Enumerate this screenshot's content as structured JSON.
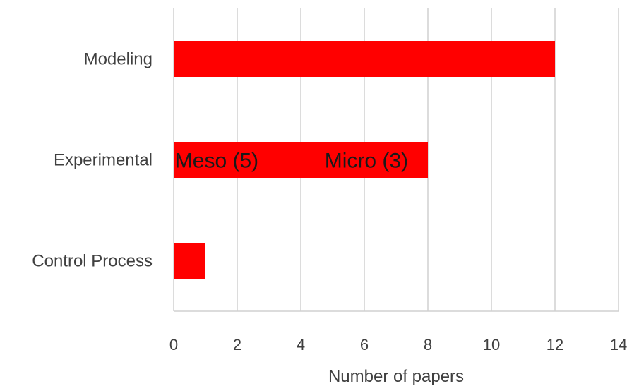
{
  "colors": {
    "bar": "#ff0000",
    "grid": "#d0d0d0",
    "text": "#404040"
  },
  "chart_data": {
    "type": "bar",
    "orientation": "horizontal",
    "categories": [
      "Modeling",
      "Experimental",
      "Control Process"
    ],
    "values": [
      12,
      8,
      1
    ],
    "xlabel": "Number of papers",
    "ylabel": "",
    "xlim": [
      0,
      14
    ],
    "xticks": [
      "0",
      "2",
      "4",
      "6",
      "8",
      "10",
      "12",
      "14"
    ],
    "grid": true,
    "annotations": [
      {
        "category": "Experimental",
        "text": "Meso (5)"
      },
      {
        "category": "Experimental",
        "text": "Micro (3)"
      }
    ]
  }
}
